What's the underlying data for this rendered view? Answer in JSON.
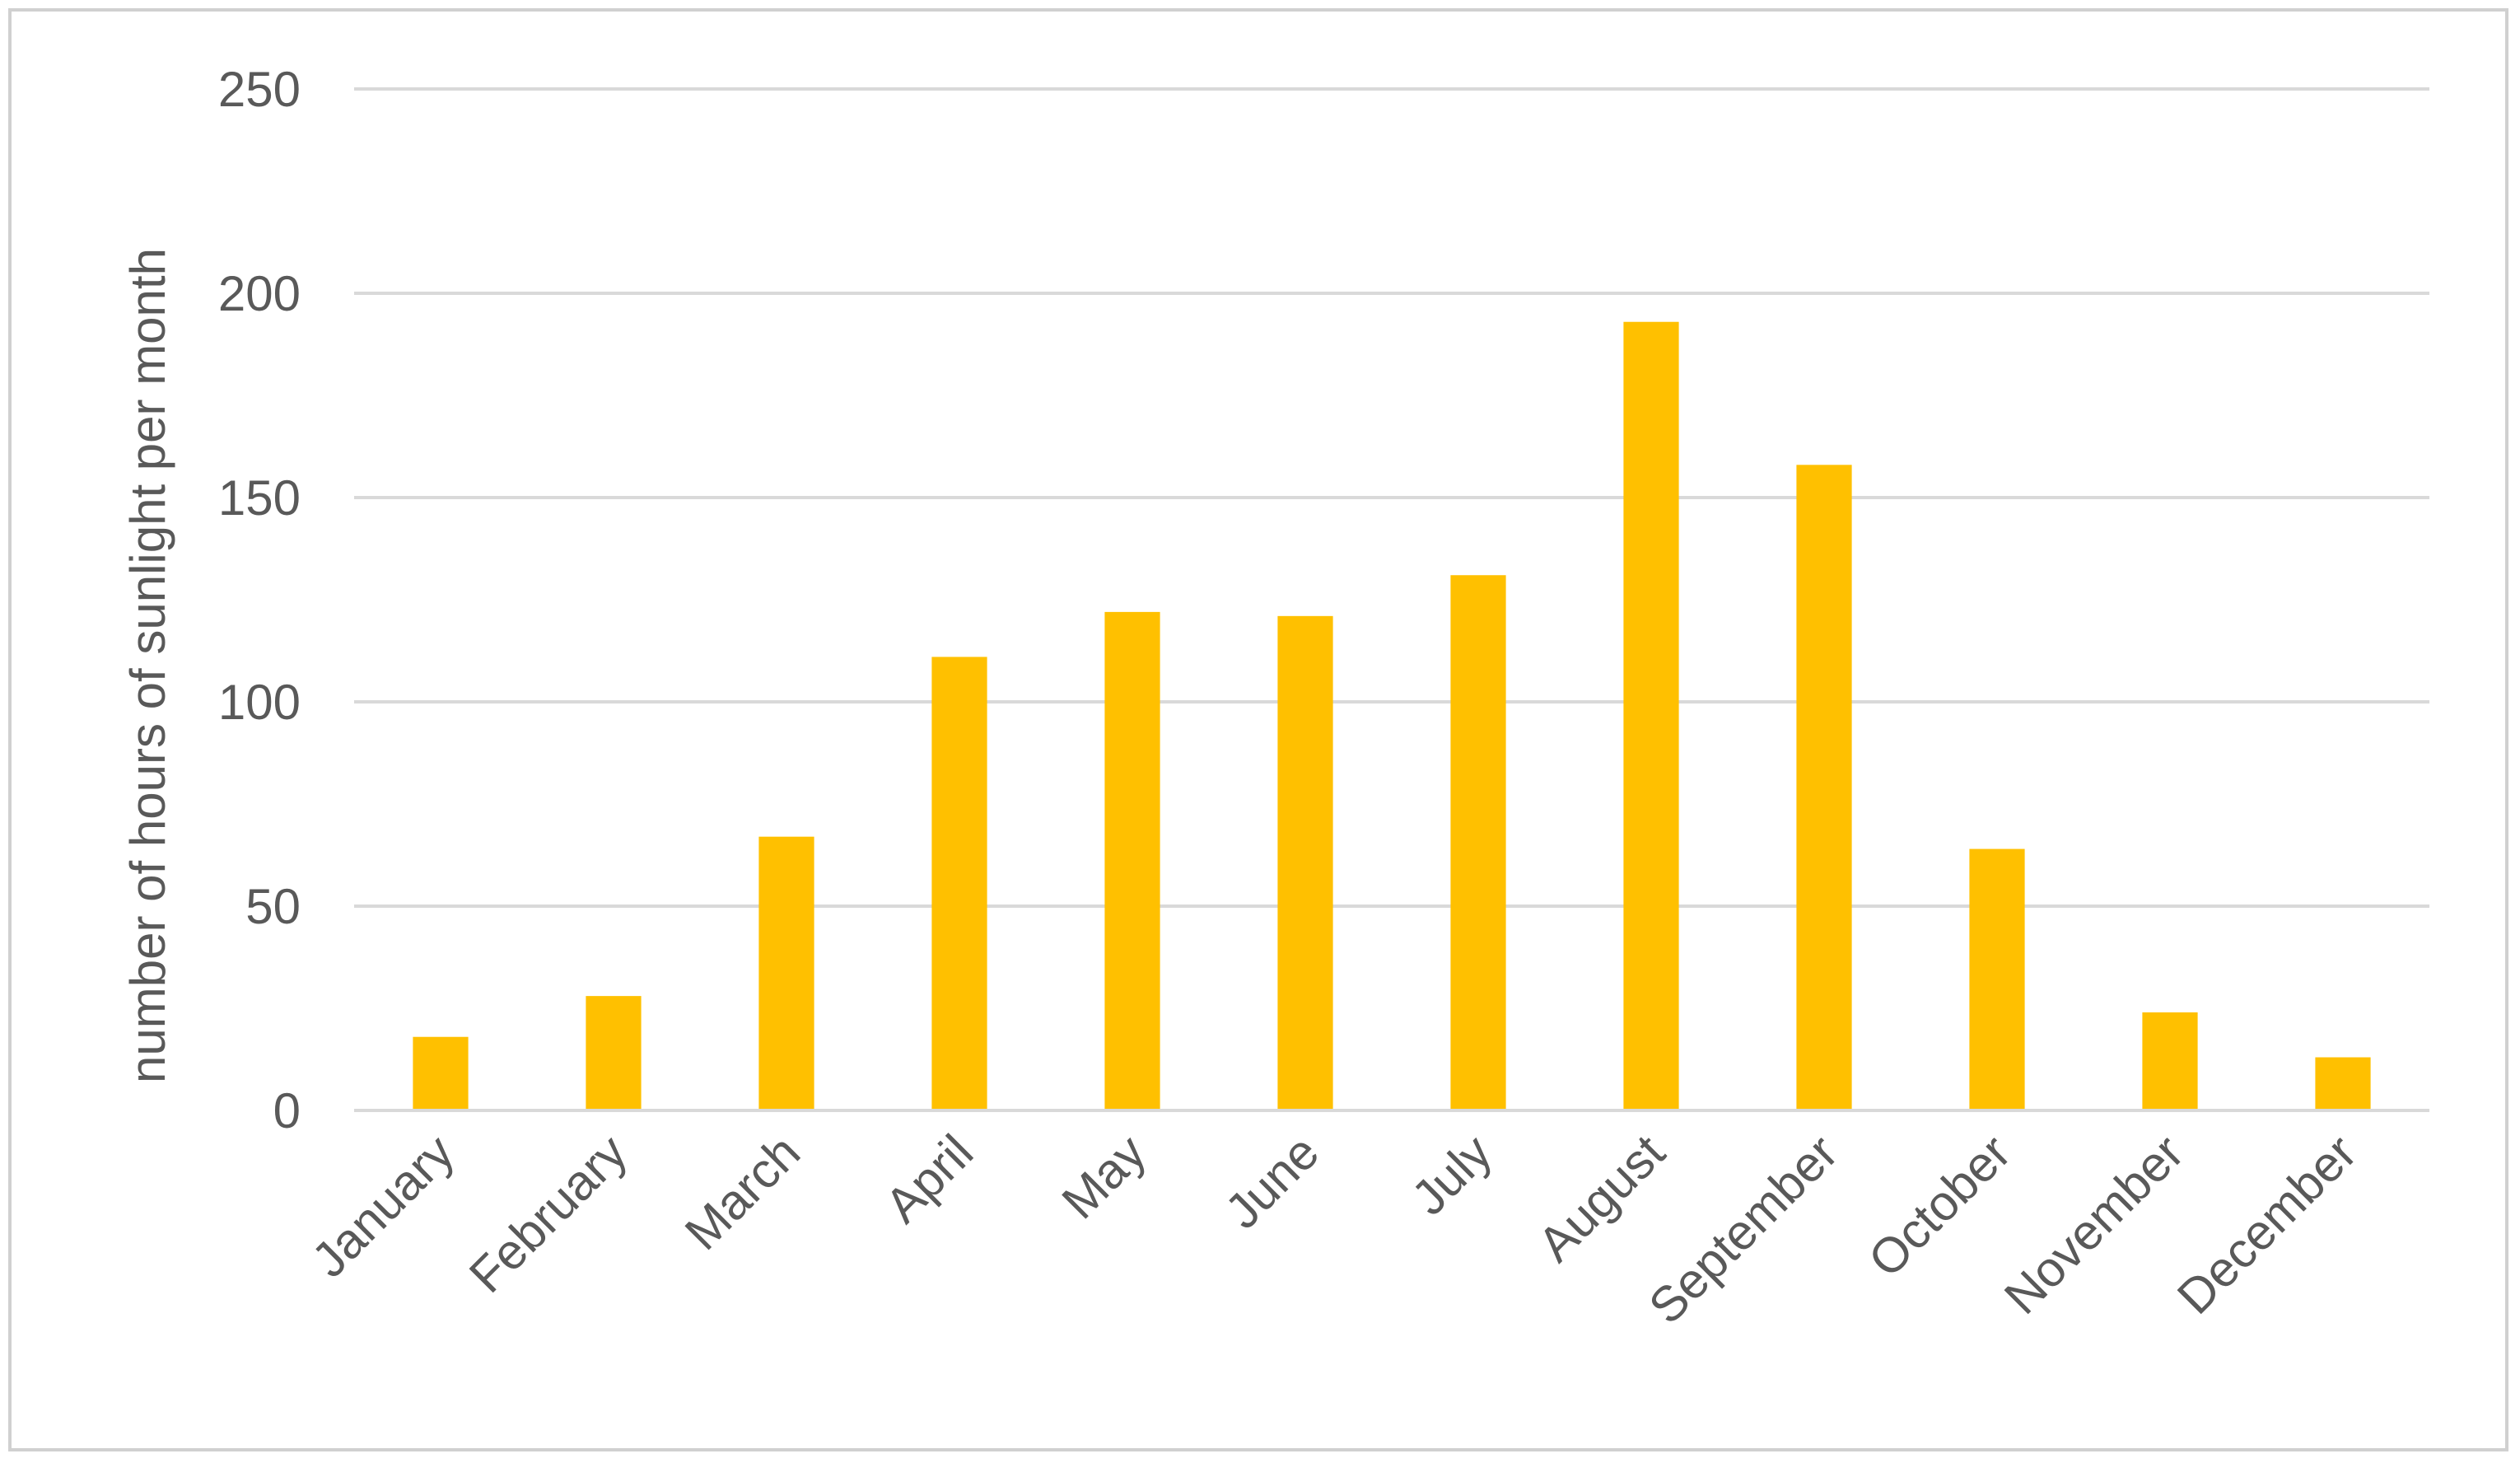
{
  "chart_data": {
    "type": "bar",
    "categories": [
      "January",
      "February",
      "March",
      "April",
      "May",
      "June",
      "July",
      "August",
      "September",
      "October",
      "November",
      "December"
    ],
    "values": [
      18,
      28,
      67,
      111,
      122,
      121,
      131,
      193,
      158,
      64,
      24,
      13
    ],
    "title": "",
    "xlabel": "",
    "ylabel": "number of hours of sunlight per month",
    "ylim": [
      0,
      250
    ],
    "yticks": [
      0,
      50,
      100,
      150,
      200,
      250
    ],
    "ytick_labels": [
      "0",
      "50",
      "100",
      "150",
      "200",
      "250"
    ],
    "grid": true,
    "legend": "none",
    "bar_color": "#FFC000",
    "grid_color": "#D9D9D9",
    "text_color": "#595959"
  }
}
